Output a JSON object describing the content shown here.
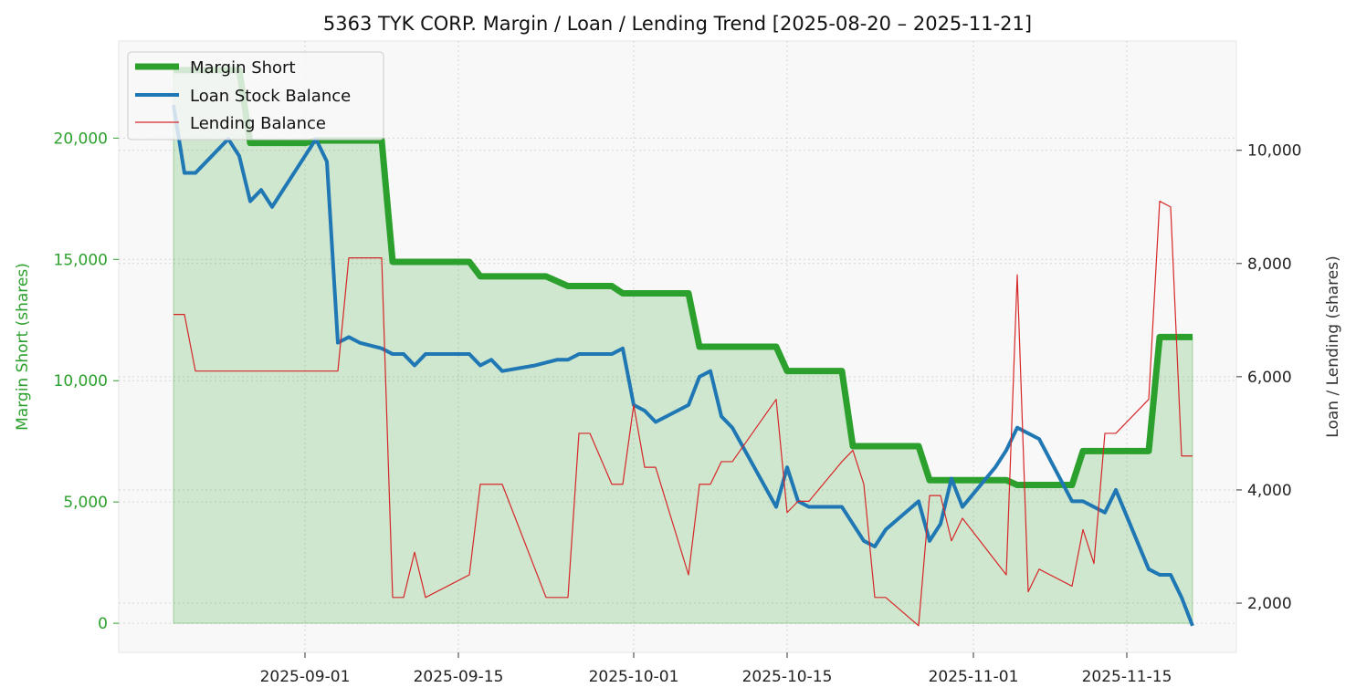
{
  "chart_data": {
    "type": "line",
    "title": "5363 TYK CORP. Margin / Loan / Lending Trend [2025-08-20 – 2025-11-21]",
    "ylabel_left": "Margin Short (shares)",
    "ylabel_right": "Loan / Lending (shares)",
    "xlabel": "",
    "x_ticks": [
      "2025-09-01",
      "2025-09-15",
      "2025-10-01",
      "2025-10-15",
      "2025-11-01",
      "2025-11-15"
    ],
    "left_axis": {
      "ylim": [
        -1200,
        24000
      ],
      "ticks": [
        0,
        5000,
        10000,
        15000,
        20000
      ],
      "tick_labels": [
        "0",
        "5,000",
        "10,000",
        "15,000",
        "20,000"
      ],
      "color": "#2ca02c"
    },
    "right_axis": {
      "ylim": [
        1130,
        11930
      ],
      "ticks": [
        2000,
        4000,
        6000,
        8000,
        10000
      ],
      "tick_labels": [
        "2,000",
        "4,000",
        "6,000",
        "8,000",
        "10,000"
      ]
    },
    "x_range": [
      "2025-08-15",
      "2025-11-25"
    ],
    "grid": true,
    "legend": {
      "position": "top-left",
      "entries": [
        "Margin Short",
        "Loan Stock Balance",
        "Lending Balance"
      ]
    },
    "series": [
      {
        "name": "Margin Short",
        "axis": "left",
        "color": "#2ca02c",
        "fill": true,
        "points": [
          [
            "2025-08-20",
            22800
          ],
          [
            "2025-08-21",
            22800
          ],
          [
            "2025-08-22",
            22800
          ],
          [
            "2025-08-25",
            22800
          ],
          [
            "2025-08-26",
            22800
          ],
          [
            "2025-08-27",
            19800
          ],
          [
            "2025-08-28",
            19800
          ],
          [
            "2025-08-29",
            19800
          ],
          [
            "2025-09-01",
            19800
          ],
          [
            "2025-09-02",
            19900
          ],
          [
            "2025-09-03",
            19900
          ],
          [
            "2025-09-04",
            19900
          ],
          [
            "2025-09-05",
            19900
          ],
          [
            "2025-09-08",
            19900
          ],
          [
            "2025-09-09",
            14900
          ],
          [
            "2025-09-10",
            14900
          ],
          [
            "2025-09-11",
            14900
          ],
          [
            "2025-09-12",
            14900
          ],
          [
            "2025-09-16",
            14900
          ],
          [
            "2025-09-17",
            14300
          ],
          [
            "2025-09-18",
            14300
          ],
          [
            "2025-09-19",
            14300
          ],
          [
            "2025-09-22",
            14300
          ],
          [
            "2025-09-23",
            14300
          ],
          [
            "2025-09-24",
            14100
          ],
          [
            "2025-09-25",
            13900
          ],
          [
            "2025-09-26",
            13900
          ],
          [
            "2025-09-29",
            13900
          ],
          [
            "2025-09-30",
            13600
          ],
          [
            "2025-10-01",
            13600
          ],
          [
            "2025-10-02",
            13600
          ],
          [
            "2025-10-03",
            13600
          ],
          [
            "2025-10-06",
            13600
          ],
          [
            "2025-10-07",
            11400
          ],
          [
            "2025-10-08",
            11400
          ],
          [
            "2025-10-09",
            11400
          ],
          [
            "2025-10-10",
            11400
          ],
          [
            "2025-10-14",
            11400
          ],
          [
            "2025-10-15",
            10400
          ],
          [
            "2025-10-16",
            10400
          ],
          [
            "2025-10-17",
            10400
          ],
          [
            "2025-10-20",
            10400
          ],
          [
            "2025-10-21",
            7300
          ],
          [
            "2025-10-22",
            7300
          ],
          [
            "2025-10-23",
            7300
          ],
          [
            "2025-10-24",
            7300
          ],
          [
            "2025-10-27",
            7300
          ],
          [
            "2025-10-28",
            5900
          ],
          [
            "2025-10-29",
            5900
          ],
          [
            "2025-10-30",
            5900
          ],
          [
            "2025-10-31",
            5900
          ],
          [
            "2025-11-03",
            5900
          ],
          [
            "2025-11-04",
            5900
          ],
          [
            "2025-11-05",
            5700
          ],
          [
            "2025-11-06",
            5700
          ],
          [
            "2025-11-07",
            5700
          ],
          [
            "2025-11-10",
            5700
          ],
          [
            "2025-11-11",
            7100
          ],
          [
            "2025-11-12",
            7100
          ],
          [
            "2025-11-13",
            7100
          ],
          [
            "2025-11-14",
            7100
          ],
          [
            "2025-11-17",
            7100
          ],
          [
            "2025-11-18",
            11800
          ],
          [
            "2025-11-19",
            11800
          ],
          [
            "2025-11-20",
            11800
          ],
          [
            "2025-11-21",
            11800
          ]
        ]
      },
      {
        "name": "Loan Stock Balance",
        "axis": "right",
        "color": "#1f77b4",
        "points": [
          [
            "2025-08-20",
            10800
          ],
          [
            "2025-08-21",
            9600
          ],
          [
            "2025-08-22",
            9600
          ],
          [
            "2025-08-25",
            10200
          ],
          [
            "2025-08-26",
            9900
          ],
          [
            "2025-08-27",
            9100
          ],
          [
            "2025-08-28",
            9300
          ],
          [
            "2025-08-29",
            9000
          ],
          [
            "2025-09-01",
            9900
          ],
          [
            "2025-09-02",
            10200
          ],
          [
            "2025-09-03",
            9800
          ],
          [
            "2025-09-04",
            6600
          ],
          [
            "2025-09-05",
            6700
          ],
          [
            "2025-09-06",
            6600
          ],
          [
            "2025-09-08",
            6500
          ],
          [
            "2025-09-09",
            6400
          ],
          [
            "2025-09-10",
            6400
          ],
          [
            "2025-09-11",
            6200
          ],
          [
            "2025-09-12",
            6400
          ],
          [
            "2025-09-16",
            6400
          ],
          [
            "2025-09-17",
            6200
          ],
          [
            "2025-09-18",
            6300
          ],
          [
            "2025-09-19",
            6100
          ],
          [
            "2025-09-22",
            6200
          ],
          [
            "2025-09-24",
            6300
          ],
          [
            "2025-09-25",
            6300
          ],
          [
            "2025-09-26",
            6400
          ],
          [
            "2025-09-29",
            6400
          ],
          [
            "2025-09-30",
            6500
          ],
          [
            "2025-10-01",
            5500
          ],
          [
            "2025-10-02",
            5400
          ],
          [
            "2025-10-03",
            5200
          ],
          [
            "2025-10-06",
            5500
          ],
          [
            "2025-10-07",
            6000
          ],
          [
            "2025-10-08",
            6100
          ],
          [
            "2025-10-09",
            5300
          ],
          [
            "2025-10-10",
            5100
          ],
          [
            "2025-10-14",
            3700
          ],
          [
            "2025-10-15",
            4400
          ],
          [
            "2025-10-16",
            3800
          ],
          [
            "2025-10-17",
            3700
          ],
          [
            "2025-10-20",
            3700
          ],
          [
            "2025-10-22",
            3100
          ],
          [
            "2025-10-23",
            3000
          ],
          [
            "2025-10-24",
            3300
          ],
          [
            "2025-10-27",
            3800
          ],
          [
            "2025-10-28",
            3100
          ],
          [
            "2025-10-29",
            3400
          ],
          [
            "2025-10-30",
            4200
          ],
          [
            "2025-10-31",
            3700
          ],
          [
            "2025-11-03",
            4400
          ],
          [
            "2025-11-04",
            4700
          ],
          [
            "2025-11-05",
            5100
          ],
          [
            "2025-11-07",
            4900
          ],
          [
            "2025-11-10",
            3800
          ],
          [
            "2025-11-11",
            3800
          ],
          [
            "2025-11-13",
            3600
          ],
          [
            "2025-11-14",
            4000
          ],
          [
            "2025-11-17",
            2600
          ],
          [
            "2025-11-18",
            2500
          ],
          [
            "2025-11-19",
            2500
          ],
          [
            "2025-11-20",
            2100
          ],
          [
            "2025-11-21",
            1600
          ]
        ]
      },
      {
        "name": "Lending Balance",
        "axis": "right",
        "color": "#d62728",
        "points": [
          [
            "2025-08-20",
            7100
          ],
          [
            "2025-08-21",
            7100
          ],
          [
            "2025-08-22",
            6100
          ],
          [
            "2025-09-04",
            6100
          ],
          [
            "2025-09-05",
            8100
          ],
          [
            "2025-09-08",
            8100
          ],
          [
            "2025-09-09",
            2100
          ],
          [
            "2025-09-10",
            2100
          ],
          [
            "2025-09-11",
            2900
          ],
          [
            "2025-09-12",
            2100
          ],
          [
            "2025-09-16",
            2500
          ],
          [
            "2025-09-17",
            4100
          ],
          [
            "2025-09-19",
            4100
          ],
          [
            "2025-09-23",
            2100
          ],
          [
            "2025-09-25",
            2100
          ],
          [
            "2025-09-26",
            5000
          ],
          [
            "2025-09-27",
            5000
          ],
          [
            "2025-09-29",
            4100
          ],
          [
            "2025-09-30",
            4100
          ],
          [
            "2025-10-01",
            5500
          ],
          [
            "2025-10-02",
            4400
          ],
          [
            "2025-10-03",
            4400
          ],
          [
            "2025-10-06",
            2500
          ],
          [
            "2025-10-07",
            4100
          ],
          [
            "2025-10-08",
            4100
          ],
          [
            "2025-10-09",
            4500
          ],
          [
            "2025-10-10",
            4500
          ],
          [
            "2025-10-14",
            5600
          ],
          [
            "2025-10-15",
            3600
          ],
          [
            "2025-10-16",
            3800
          ],
          [
            "2025-10-17",
            3800
          ],
          [
            "2025-10-20",
            4500
          ],
          [
            "2025-10-21",
            4700
          ],
          [
            "2025-10-22",
            4100
          ],
          [
            "2025-10-23",
            2100
          ],
          [
            "2025-10-24",
            2100
          ],
          [
            "2025-10-27",
            1600
          ],
          [
            "2025-10-28",
            3900
          ],
          [
            "2025-10-29",
            3900
          ],
          [
            "2025-10-30",
            3100
          ],
          [
            "2025-10-31",
            3500
          ],
          [
            "2025-11-04",
            2500
          ],
          [
            "2025-11-05",
            7800
          ],
          [
            "2025-11-06",
            2200
          ],
          [
            "2025-11-07",
            2600
          ],
          [
            "2025-11-10",
            2300
          ],
          [
            "2025-11-11",
            3300
          ],
          [
            "2025-11-12",
            2700
          ],
          [
            "2025-11-13",
            5000
          ],
          [
            "2025-11-14",
            5000
          ],
          [
            "2025-11-17",
            5600
          ],
          [
            "2025-11-18",
            9100
          ],
          [
            "2025-11-19",
            9000
          ],
          [
            "2025-11-20",
            4600
          ],
          [
            "2025-11-21",
            4600
          ]
        ]
      }
    ]
  }
}
